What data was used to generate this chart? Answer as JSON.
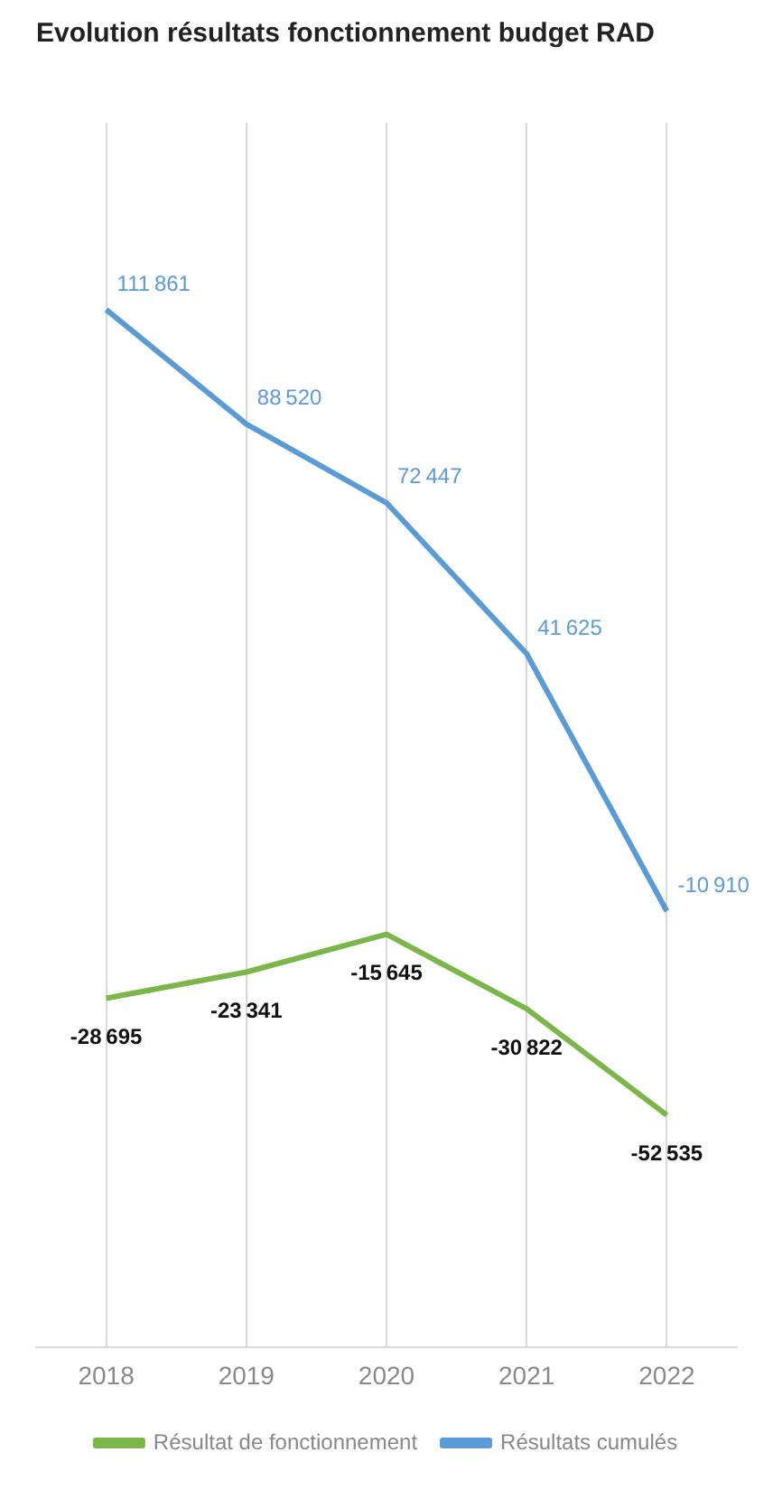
{
  "chart_data": {
    "type": "line",
    "title": "Evolution résultats fonctionnement budget RAD",
    "categories": [
      "2018",
      "2019",
      "2020",
      "2021",
      "2022"
    ],
    "series": [
      {
        "name": "Résultat de fonctionnement",
        "color": "#7ab648",
        "values": [
          -28695,
          -23341,
          -15645,
          -30822,
          -52535
        ]
      },
      {
        "name": "Résultats cumulés",
        "color": "#5b9bd5",
        "values": [
          111861,
          88520,
          72447,
          41625,
          -10910
        ]
      }
    ],
    "data_labels": true,
    "grid": "x",
    "legend": "bottom",
    "marker": "none"
  }
}
